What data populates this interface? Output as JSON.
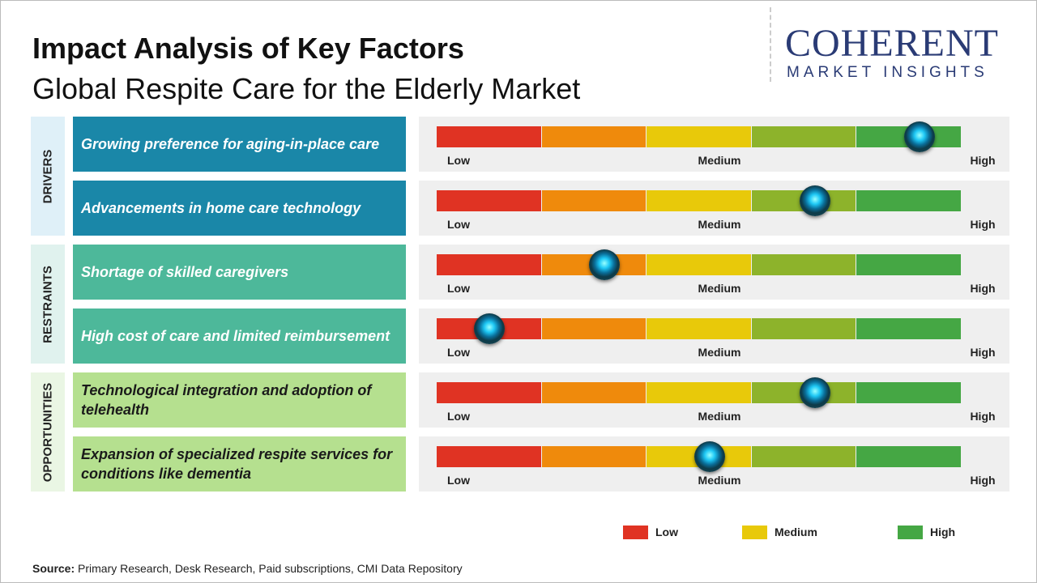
{
  "header": {
    "title": "Impact Analysis of Key Factors",
    "subtitle": "Global Respite Care for the Elderly Market"
  },
  "logo": {
    "name": "COHERENT",
    "tagline": "MARKET INSIGHTS"
  },
  "groups": [
    {
      "label": "DRIVERS",
      "color": "#1a87a8",
      "text_color": "#ffffff",
      "band_color": "#dff0f8",
      "factors": [
        {
          "text": "Growing preference for aging-in-place care",
          "level": 4.6
        },
        {
          "text": "Advancements in home care technology",
          "level": 3.6
        }
      ]
    },
    {
      "label": "RESTRAINTS",
      "color": "#4db89a",
      "text_color": "#ffffff",
      "band_color": "#e0f2ee",
      "factors": [
        {
          "text": "Shortage of skilled caregivers",
          "level": 1.6
        },
        {
          "text": "High cost of care and limited reimbursement",
          "level": 0.5
        }
      ]
    },
    {
      "label": "OPPORTUNITIES",
      "color": "#b5e08f",
      "text_color": "#1a1a1a",
      "band_color": "#eaf6e4",
      "factors": [
        {
          "text": "Technological integration and adoption of telehealth",
          "level": 3.6
        },
        {
          "text": "Expansion of specialized respite services for conditions like dementia",
          "level": 2.6
        }
      ]
    }
  ],
  "scale": {
    "labels": [
      "Low",
      "Medium",
      "High"
    ],
    "range": [
      0,
      5
    ],
    "colors": [
      "#e03323",
      "#ef8a0c",
      "#e8c90a",
      "#8db32b",
      "#45a744"
    ]
  },
  "legend": [
    {
      "label": "Low",
      "color": "#e03323"
    },
    {
      "label": "Medium",
      "color": "#e8c90a"
    },
    {
      "label": "High",
      "color": "#45a744"
    }
  ],
  "source": {
    "label": "Source:",
    "text": "Primary Research, Desk Research, Paid subscriptions, CMI Data Repository"
  }
}
